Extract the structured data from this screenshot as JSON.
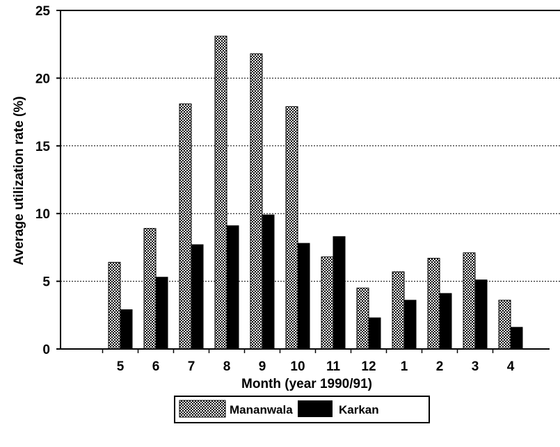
{
  "chart_data": {
    "type": "bar",
    "categories": [
      "5",
      "6",
      "7",
      "8",
      "9",
      "10",
      "11",
      "12",
      "1",
      "2",
      "3",
      "4"
    ],
    "series": [
      {
        "name": "Mananwala",
        "values": [
          6.4,
          8.9,
          18.1,
          23.1,
          21.8,
          17.9,
          6.8,
          4.5,
          5.7,
          6.7,
          7.1,
          3.6
        ],
        "fill": "checkered"
      },
      {
        "name": "Karkan",
        "values": [
          2.9,
          5.3,
          7.7,
          9.1,
          9.9,
          7.8,
          8.3,
          2.3,
          3.6,
          4.1,
          5.1,
          1.6
        ],
        "fill": "#000000"
      }
    ],
    "xlabel": "Month (year  1990/91)",
    "ylabel": "Average utilization rate (%)",
    "ylim": [
      0,
      25
    ],
    "yticks": [
      0,
      5,
      10,
      15,
      20,
      25
    ],
    "grid": true,
    "legend_position": "bottom-center"
  }
}
